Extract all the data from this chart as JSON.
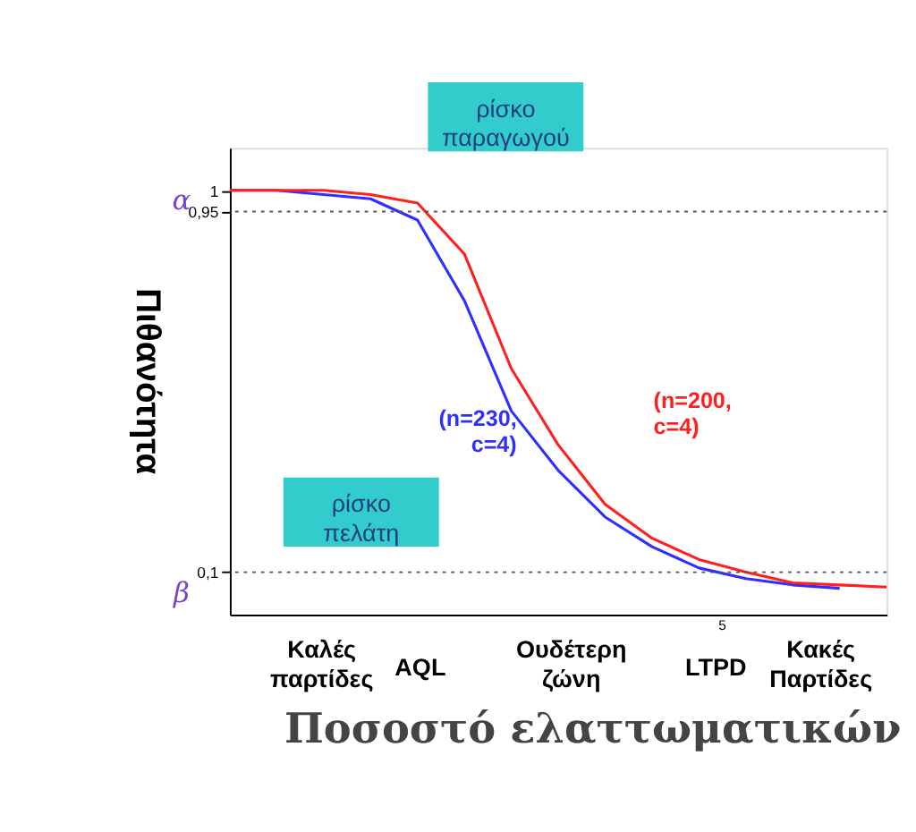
{
  "chart_data": {
    "type": "line",
    "xlabel": "Ποσοστό ελαττωματικών",
    "ylabel": "Πιθανότητα",
    "categories": [
      null,
      null,
      null,
      null,
      null,
      null,
      null,
      null,
      null,
      null,
      null,
      null,
      null,
      null,
      null
    ],
    "ylim": [
      0,
      1.1
    ],
    "yticks": [
      {
        "value": 0.1,
        "label": "0,1"
      },
      {
        "value": 0.95,
        "label": "0,95"
      },
      {
        "value": 1,
        "label": "1"
      }
    ],
    "grid": false,
    "marker": "none",
    "line_style": "solid",
    "series": [
      {
        "name": "(n=230, c=4)",
        "color": "#2f2fff",
        "values": [
          1.0,
          1.0,
          0.99,
          0.98,
          0.93,
          0.74,
          0.48,
          0.34,
          0.23,
          0.16,
          0.11,
          0.085,
          0.07,
          0.062,
          null
        ]
      },
      {
        "name": "(n=200, c=4)",
        "color": "#ff1f1f",
        "values": [
          1.0,
          1.0,
          1.0,
          0.99,
          0.97,
          0.85,
          0.58,
          0.4,
          0.26,
          0.18,
          0.13,
          0.1,
          0.075,
          0.07,
          0.065
        ]
      }
    ],
    "ref_lines": [
      {
        "axis": "y",
        "value": 0.95,
        "color": "#555555",
        "line_style": "dotted"
      },
      {
        "axis": "y",
        "value": 0.1,
        "color": "#555555",
        "line_style": "dotted"
      }
    ],
    "annotations": [
      "ρίσκο παραγωγού",
      "ρίσκο πελάτη",
      "α",
      "β",
      "Καλές\nπαρτίδες",
      "Ουδέτερη\nζώνη",
      "Κακές\nΠαρτίδες",
      "AQL",
      "LTPD",
      "5"
    ]
  }
}
